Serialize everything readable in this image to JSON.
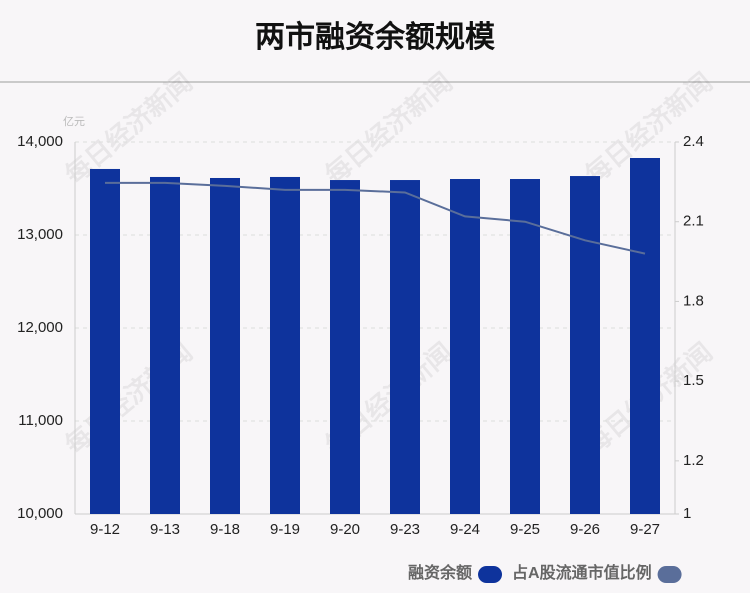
{
  "chart_data": {
    "type": "bar",
    "title": "两市融资余额规模",
    "y_unit": "亿元",
    "watermark": "每日经济新闻",
    "categories": [
      "9-12",
      "9-13",
      "9-18",
      "9-19",
      "9-20",
      "9-23",
      "9-24",
      "9-25",
      "9-26",
      "9-27"
    ],
    "series": [
      {
        "name": "融资余额",
        "type": "bar",
        "axis": "y",
        "color": "#0e339c",
        "values": [
          13710,
          13624,
          13613,
          13624,
          13591,
          13591,
          13602,
          13602,
          13634,
          13828
        ]
      },
      {
        "name": "占A股流通市值比例",
        "type": "line",
        "axis": "y2",
        "color": "#5a6e9a",
        "values": [
          2.246,
          2.246,
          2.235,
          2.22,
          2.22,
          2.21,
          2.12,
          2.1,
          2.03,
          1.98
        ]
      }
    ],
    "ylim": [
      10000,
      14000
    ],
    "yticks": [
      {
        "value": 10000,
        "label": "10,000"
      },
      {
        "value": 11000,
        "label": "11,000"
      },
      {
        "value": 12000,
        "label": "12,000"
      },
      {
        "value": 13000,
        "label": "13,000"
      },
      {
        "value": 14000,
        "label": "14,000"
      }
    ],
    "y2lim": [
      1,
      2.4
    ],
    "y2ticks": [
      1,
      1.2,
      1.5,
      1.8,
      2.1,
      2.4
    ],
    "grid": true
  }
}
